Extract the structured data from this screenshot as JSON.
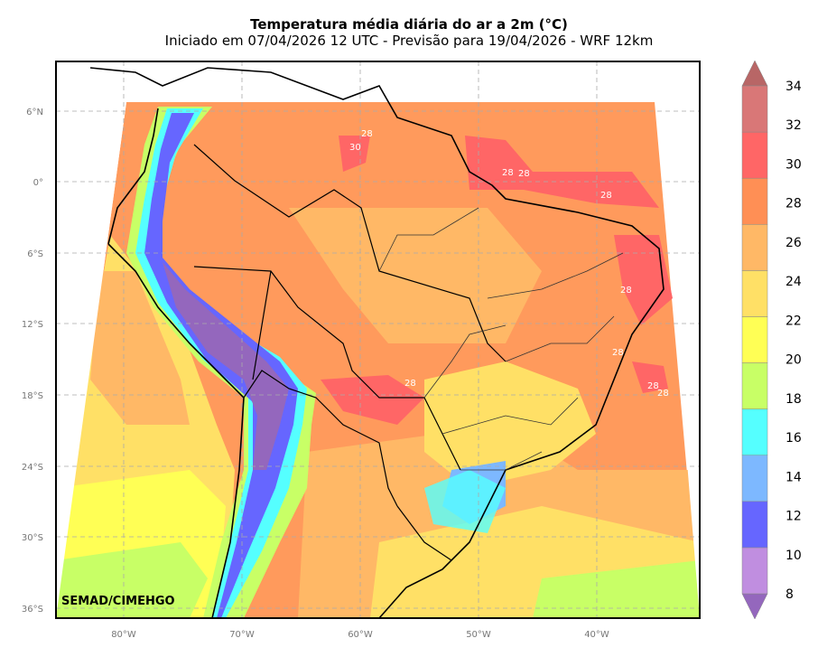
{
  "header": {
    "title": "Temperatura média diária do ar a 2m (°C)",
    "subtitle": "Iniciado em 07/04/2026 12 UTC - Previsão para 19/04/2026 - WRF 12km"
  },
  "axes": {
    "lat_labels": [
      "6°N",
      "0°",
      "6°S",
      "12°S",
      "18°S",
      "24°S",
      "30°S",
      "36°S"
    ],
    "lon_labels": [
      "80°W",
      "70°W",
      "60°W",
      "50°W",
      "40°W"
    ]
  },
  "colorbar": {
    "levels": [
      "8",
      "10",
      "12",
      "14",
      "16",
      "18",
      "20",
      "22",
      "24",
      "26",
      "28",
      "30",
      "32",
      "34"
    ],
    "colors": [
      "#9467bd",
      "#c08ee0",
      "#6666ff",
      "#7db8ff",
      "#55ffff",
      "#c8ff66",
      "#ffff55",
      "#ffe066",
      "#ffb866",
      "#ff8f55",
      "#ff6666",
      "#d97777",
      "#b86666"
    ]
  },
  "map": {
    "credit": "SEMAD/CIMEHGO",
    "contour_labels": [
      "28",
      "30",
      "28",
      "28",
      "28",
      "28",
      "28",
      "28",
      "28",
      "28"
    ]
  }
}
